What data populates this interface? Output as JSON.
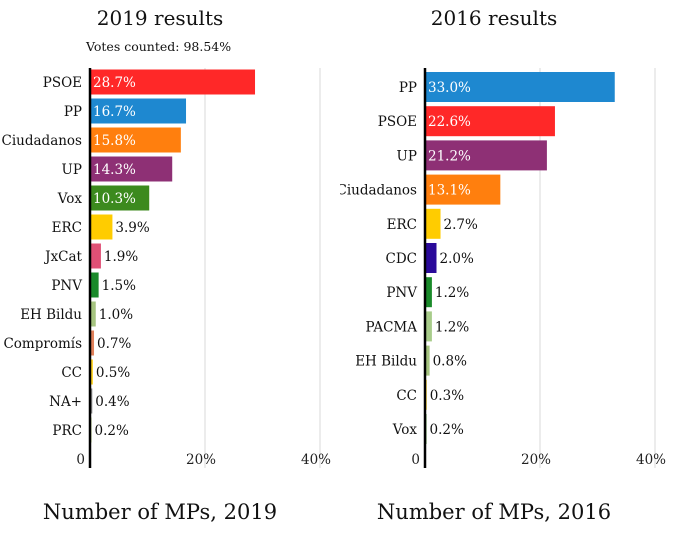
{
  "chart_data": [
    {
      "type": "bar",
      "orientation": "horizontal",
      "title": "2019 results",
      "subtitle": "Votes counted: 98.54%",
      "footer": "Number of MPs, 2019",
      "categories": [
        "PSOE",
        "PP",
        "Ciudadanos",
        "UP",
        "Vox",
        "ERC",
        "JxCat",
        "PNV",
        "EH Bildu",
        "Compromís",
        "CC",
        "NA+",
        "PRC"
      ],
      "values": [
        28.7,
        16.7,
        15.8,
        14.3,
        10.3,
        3.9,
        1.9,
        1.5,
        1.0,
        0.7,
        0.5,
        0.4,
        0.2
      ],
      "value_labels": [
        "28.7%",
        "16.7%",
        "15.8%",
        "14.3%",
        "10.3%",
        "3.9%",
        "1.9%",
        "1.5%",
        "1.0%",
        "0.7%",
        "0.5%",
        "0.4%",
        "0.2%"
      ],
      "colors": [
        "#ff2828",
        "#1e88d0",
        "#ff7f0e",
        "#8e3075",
        "#3c8a1e",
        "#ffcc00",
        "#e05075",
        "#1a8a2a",
        "#a6c480",
        "#e0805a",
        "#ffd21f",
        "#888888",
        "#a8cc60"
      ],
      "xlim": [
        0,
        40
      ],
      "x_ticks": [
        0,
        20,
        40
      ],
      "x_tick_labels": [
        "0",
        "20%",
        "40%"
      ],
      "grid": true
    },
    {
      "type": "bar",
      "orientation": "horizontal",
      "title": "2016 results",
      "footer": "Number of MPs, 2016",
      "categories": [
        "PP",
        "PSOE",
        "UP",
        "Ciudadanos",
        "ERC",
        "CDC",
        "PNV",
        "PACMA",
        "EH Bildu",
        "CC",
        "Vox"
      ],
      "values": [
        33.0,
        22.6,
        21.2,
        13.1,
        2.7,
        2.0,
        1.2,
        1.2,
        0.8,
        0.3,
        0.2
      ],
      "value_labels": [
        "33.0%",
        "22.6%",
        "21.2%",
        "13.1%",
        "2.7%",
        "2.0%",
        "1.2%",
        "1.2%",
        "0.8%",
        "0.3%",
        "0.2%"
      ],
      "colors": [
        "#1e88d0",
        "#ff2828",
        "#8e3075",
        "#ff7f0e",
        "#ffcc00",
        "#2a0a9a",
        "#1a8a2a",
        "#a8cc8a",
        "#a6c480",
        "#ffd21f",
        "#3c8a1e"
      ],
      "xlim": [
        0,
        40
      ],
      "x_ticks": [
        0,
        20,
        40
      ],
      "x_tick_labels": [
        "0",
        "20%",
        "40%"
      ],
      "grid": true
    }
  ]
}
